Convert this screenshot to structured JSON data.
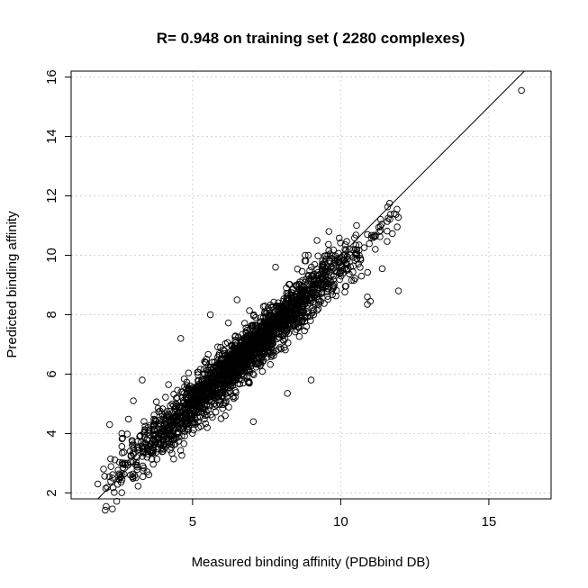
{
  "chart_data": {
    "type": "scatter",
    "title": "R= 0.948 on training set ( 2280  complexes)",
    "xlabel": "Measured binding affinity (PDBbind DB)",
    "ylabel": "Predicted binding affinity",
    "xlim": [
      0.9,
      17.1
    ],
    "ylim": [
      1.8,
      16.2
    ],
    "x_ticks": [
      5,
      10,
      15
    ],
    "y_ticks": [
      2,
      4,
      6,
      8,
      10,
      12,
      14,
      16
    ],
    "x_tick_labels": [
      "5",
      "10",
      "15"
    ],
    "y_tick_labels": [
      "2",
      "4",
      "6",
      "8",
      "10",
      "12",
      "14",
      "16"
    ],
    "grid": true,
    "reference_line": {
      "slope": 1,
      "intercept": 0
    },
    "point_count": 2280,
    "points": [
      [
        16.1,
        15.55
      ],
      [
        11.95,
        8.8
      ],
      [
        10.9,
        8.35
      ],
      [
        10.9,
        8.6
      ],
      [
        11.0,
        8.45
      ],
      [
        11.65,
        11.75
      ],
      [
        11.9,
        11.55
      ],
      [
        11.8,
        11.4
      ],
      [
        11.6,
        11.25
      ],
      [
        11.3,
        10.8
      ],
      [
        11.1,
        10.6
      ],
      [
        10.9,
        10.7
      ],
      [
        10.5,
        10.2
      ],
      [
        10.2,
        9.7
      ],
      [
        10.7,
        9.3
      ],
      [
        11.4,
        9.55
      ],
      [
        9.6,
        10.8
      ],
      [
        9.2,
        10.5
      ],
      [
        8.8,
        10.0
      ],
      [
        8.2,
        5.35
      ],
      [
        9.0,
        5.8
      ],
      [
        7.05,
        4.4
      ],
      [
        5.6,
        8.0
      ],
      [
        4.6,
        7.2
      ],
      [
        6.5,
        8.5
      ],
      [
        7.8,
        9.6
      ],
      [
        3.3,
        5.8
      ],
      [
        3.0,
        5.1
      ],
      [
        2.2,
        4.3
      ],
      [
        1.8,
        2.3
      ],
      [
        2.3,
        2.5
      ],
      [
        2.9,
        2.6
      ],
      [
        6.1,
        4.6
      ],
      [
        4.0,
        3.4
      ],
      [
        5.2,
        4.2
      ]
    ]
  }
}
